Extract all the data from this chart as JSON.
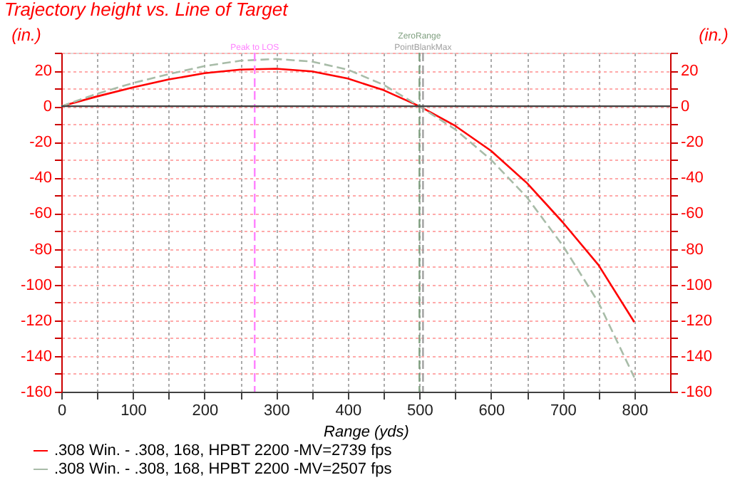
{
  "chart_data": {
    "type": "line",
    "title": "Trajectory height vs. Line of Target",
    "xlabel": "Range (yds)",
    "ylabel": "(in.)",
    "y2label": "(in.)",
    "x": [
      0,
      50,
      100,
      150,
      200,
      250,
      300,
      350,
      400,
      450,
      500,
      550,
      600,
      650,
      700,
      750,
      800
    ],
    "series": [
      {
        "name": ".308 Win. - .308, 168, HPBT 2200 -MV=2739 fps",
        "color": "#ff0000",
        "values": [
          0,
          5.5,
          10.5,
          15,
          18.5,
          20.5,
          21,
          19.5,
          15.5,
          9,
          0,
          -11,
          -25,
          -43,
          -65,
          -89,
          -121
        ]
      },
      {
        "name": ".308 Win. - .308, 168, HPBT 2200 -MV=2507 fps",
        "color": "#a8bca8",
        "line_style": "dashed",
        "values": [
          0,
          7,
          13,
          18,
          22.5,
          25.5,
          26.5,
          25,
          20.5,
          12,
          0,
          -13,
          -30,
          -51,
          -78,
          -110,
          -152
        ]
      }
    ],
    "xlim": [
      0,
      850
    ],
    "xticks": [
      0,
      {
        "value": 50,
        "label": null
      },
      100,
      {
        "value": 150,
        "label": null
      },
      200,
      {
        "value": 250,
        "label": null
      },
      300,
      {
        "value": 350,
        "label": null
      },
      400,
      {
        "value": 450,
        "label": null
      },
      500,
      {
        "value": 550,
        "label": null
      },
      600,
      {
        "value": 650,
        "label": null
      },
      700,
      {
        "value": 750,
        "label": null
      },
      800
    ],
    "ylim": [
      -160,
      30
    ],
    "yticks": [
      -160,
      {
        "value": -150,
        "label": null
      },
      -140,
      {
        "value": -130,
        "label": null
      },
      -120,
      {
        "value": -110,
        "label": null
      },
      -100,
      {
        "value": -90,
        "label": null
      },
      -80,
      {
        "value": -70,
        "label": null
      },
      -60,
      {
        "value": -50,
        "label": null
      },
      -40,
      {
        "value": -30,
        "label": null
      },
      -20,
      {
        "value": -10,
        "label": null
      },
      0,
      {
        "value": 10,
        "label": null
      },
      20,
      {
        "value": 30,
        "label": null
      }
    ],
    "y2lim": [
      -160,
      30
    ],
    "y2ticks": [
      -160,
      {
        "value": -150,
        "label": null
      },
      -140,
      {
        "value": -130,
        "label": null
      },
      -120,
      {
        "value": -110,
        "label": null
      },
      -100,
      {
        "value": -90,
        "label": null
      },
      -80,
      {
        "value": -70,
        "label": null
      },
      -60,
      {
        "value": -50,
        "label": null
      },
      -40,
      {
        "value": -30,
        "label": null
      },
      -20,
      {
        "value": -10,
        "label": null
      },
      0,
      {
        "value": 10,
        "label": null
      },
      20,
      {
        "value": 30,
        "label": null
      }
    ],
    "ref_lines": [
      {
        "axis": "x",
        "value": 270,
        "label": "Peak to LOS",
        "color": "#ff80ff",
        "line_style": "dashed"
      },
      {
        "axis": "x",
        "value": 500,
        "label": "ZeroRange",
        "color": "#80a080",
        "line_style": "dashed"
      },
      {
        "axis": "x",
        "value": 505,
        "label": "PointBlankMax",
        "color": "#a0a0a0",
        "line_style": "dashed"
      },
      {
        "axis": "y2",
        "value": 0,
        "color": "#404040",
        "line_style": "solid"
      }
    ],
    "grid": true,
    "legend": "bottom",
    "marker": "none"
  }
}
